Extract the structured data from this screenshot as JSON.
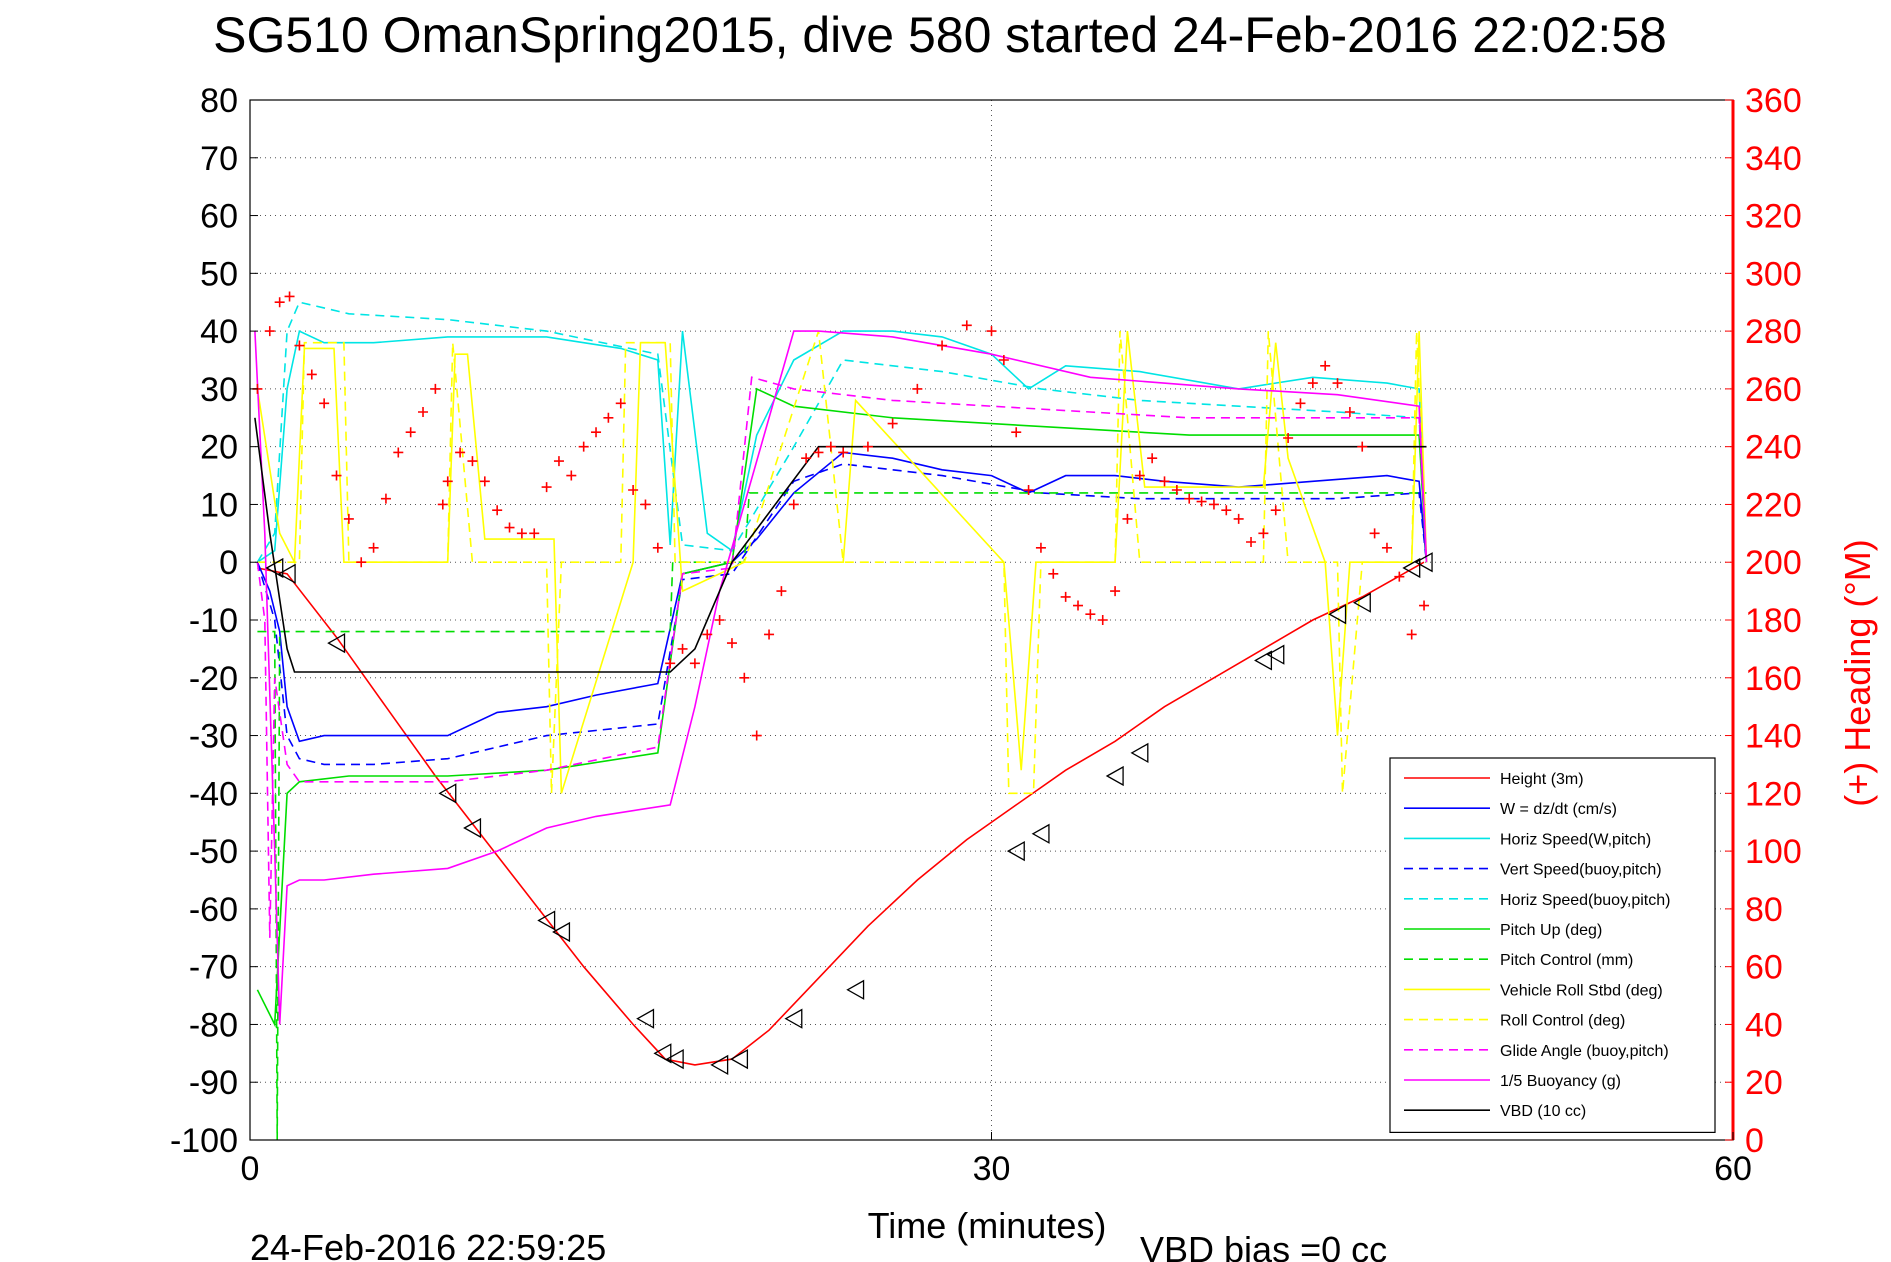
{
  "figure": {
    "title": "SG510 OmanSpring2015, dive 580 started 24-Feb-2016 22:02:58",
    "footer_timestamp": "24-Feb-2016 22:59:25",
    "footer_vbd_bias": "VBD bias =0 cc"
  },
  "chart_data": {
    "type": "line",
    "title": "SG510 OmanSpring2015, dive 580 started 24-Feb-2016 22:02:58",
    "xlabel": "Time (minutes)",
    "ylabel": "",
    "y2label": "(+) Heading (°M)",
    "xlim": [
      0,
      60
    ],
    "ylim": [
      -100,
      80
    ],
    "y2lim": [
      0,
      360
    ],
    "xticks": [
      0,
      30,
      60
    ],
    "yticks": [
      -100,
      -90,
      -80,
      -70,
      -60,
      -50,
      -40,
      -30,
      -20,
      -10,
      0,
      10,
      20,
      30,
      40,
      50,
      60,
      70,
      80
    ],
    "y2ticks": [
      0,
      20,
      40,
      60,
      80,
      100,
      120,
      140,
      160,
      180,
      200,
      220,
      240,
      260,
      280,
      300,
      320,
      340,
      360
    ],
    "grid": "dotted",
    "legend_position": "bottom-right",
    "series": [
      {
        "name": "Height (3m)",
        "color": "#ff0000",
        "dash": "solid",
        "x": [
          0.3,
          1.5,
          3.5,
          5.5,
          7.5,
          9.5,
          11.5,
          13.5,
          15.5,
          16.8,
          18.0,
          19.5,
          21.0,
          23.0,
          25.0,
          27.0,
          29.0,
          31.0,
          33.0,
          35.0,
          37.0,
          39.0,
          41.0,
          43.0,
          45.0,
          47.5
        ],
        "values": [
          -1,
          -2,
          -13,
          -25,
          -37,
          -48,
          -59,
          -70,
          -80,
          -86,
          -87,
          -86,
          -81,
          -72,
          -63,
          -55,
          -48,
          -42,
          -36,
          -31,
          -25,
          -20,
          -15,
          -10,
          -6,
          0
        ]
      },
      {
        "name": "W = dz/dt (cm/s)",
        "color": "#0000ff",
        "dash": "solid",
        "x": [
          0.3,
          0.8,
          1.2,
          1.5,
          2.0,
          3.0,
          5.0,
          8.0,
          10.0,
          12.0,
          14.0,
          16.5,
          17.5,
          18.5,
          19.5,
          20.5,
          22.0,
          24.0,
          26.0,
          28.0,
          30.0,
          31.5,
          33.0,
          35.0,
          37.0,
          40.0,
          43.0,
          46.0,
          47.3,
          47.6
        ],
        "values": [
          0,
          -5,
          -12,
          -25,
          -31,
          -30,
          -30,
          -30,
          -26,
          -25,
          -23,
          -21,
          -2,
          -1,
          0,
          4,
          12,
          19,
          18,
          16,
          15,
          12,
          15,
          15,
          14,
          13,
          14,
          15,
          14,
          0
        ]
      },
      {
        "name": "Horiz Speed(W,pitch)",
        "color": "#00e5e5",
        "dash": "solid",
        "x": [
          0.3,
          1.0,
          1.5,
          2.0,
          3.0,
          5.0,
          8.0,
          12.0,
          15.0,
          16.5,
          17.0,
          17.5,
          18.5,
          19.5,
          20.5,
          22.0,
          24.0,
          26.0,
          28.0,
          30.0,
          31.5,
          33.0,
          36.0,
          40.0,
          43.0,
          46.0,
          47.3,
          47.6
        ],
        "values": [
          0,
          2,
          30,
          40,
          38,
          38,
          39,
          39,
          37,
          35,
          3,
          40,
          5,
          2,
          22,
          35,
          40,
          40,
          39,
          36,
          30,
          34,
          33,
          30,
          32,
          31,
          30,
          0
        ]
      },
      {
        "name": "Vert Speed(buoy,pitch)",
        "color": "#0000ff",
        "dash": "dashed",
        "x": [
          0.3,
          1.0,
          1.5,
          2.0,
          3.0,
          5.0,
          8.0,
          12.0,
          16.5,
          17.5,
          19.5,
          22.0,
          24.0,
          28.0,
          32.0,
          36.0,
          40.0,
          44.0,
          47.3,
          47.6
        ],
        "values": [
          0,
          -10,
          -30,
          -34,
          -35,
          -35,
          -34,
          -30,
          -28,
          -3,
          -2,
          14,
          17,
          15,
          12,
          11,
          11,
          11,
          12,
          0
        ]
      },
      {
        "name": "Horiz Speed(buoy,pitch)",
        "color": "#00e5e5",
        "dash": "dashed",
        "x": [
          0.3,
          1.0,
          1.5,
          2.0,
          4.0,
          8.0,
          12.0,
          16.5,
          17.5,
          19.5,
          22.0,
          24.0,
          28.0,
          32.0,
          36.0,
          40.0,
          44.0,
          47.3,
          47.6
        ],
        "values": [
          0,
          5,
          40,
          45,
          43,
          42,
          40,
          36,
          3,
          2,
          20,
          35,
          33,
          30,
          28,
          27,
          26,
          25,
          0
        ]
      },
      {
        "name": "Pitch Up (deg)",
        "color": "#00dd00",
        "dash": "solid",
        "x": [
          0.3,
          1.0,
          1.5,
          2.0,
          4.0,
          8.0,
          12.0,
          16.5,
          17.5,
          19.5,
          20.5,
          22.0,
          26.0,
          30.0,
          34.0,
          38.0,
          42.0,
          45.0,
          47.3,
          47.6
        ],
        "values": [
          -74,
          -80,
          -40,
          -38,
          -37,
          -37,
          -36,
          -33,
          -2,
          0,
          30,
          27,
          25,
          24,
          23,
          22,
          22,
          22,
          22,
          0
        ]
      },
      {
        "name": "Pitch Control (mm)",
        "color": "#00dd00",
        "dash": "dashed",
        "x": [
          0.3,
          1.0,
          1.1,
          1.2,
          1.6,
          2.0,
          8.0,
          12.0,
          17.0,
          17.1,
          19.5,
          20.0,
          20.2,
          30.0,
          40.0,
          47.6
        ],
        "values": [
          -12,
          -12,
          -100,
          -12,
          -12,
          -12,
          -12,
          -12,
          -12,
          0,
          0,
          0,
          12,
          12,
          12,
          12
        ]
      },
      {
        "name": "Vehicle Roll Stbd (deg)",
        "color": "#ffff00",
        "dash": "solid",
        "x": [
          0.3,
          1.2,
          1.8,
          2.2,
          3.4,
          3.8,
          8.0,
          8.3,
          8.8,
          9.5,
          11.5,
          12.3,
          12.6,
          15.5,
          15.8,
          16.8,
          17.5,
          20.0,
          24.0,
          24.5,
          30.5,
          31.2,
          31.8,
          35.0,
          35.5,
          36.2,
          41.0,
          41.5,
          42.0,
          43.5,
          44.0,
          44.5,
          47.0,
          47.3,
          47.6
        ],
        "values": [
          30,
          5,
          0,
          37,
          37,
          0,
          0,
          36,
          36,
          4,
          4,
          4,
          -40,
          0,
          38,
          38,
          -5,
          0,
          0,
          28,
          0,
          -36,
          0,
          0,
          40,
          13,
          13,
          38,
          18,
          0,
          -30,
          0,
          0,
          40,
          0
        ]
      },
      {
        "name": "Roll Control (deg)",
        "color": "#ffff00",
        "dash": "dashed",
        "x": [
          0.3,
          2.0,
          2.2,
          3.8,
          4.0,
          8.0,
          8.2,
          9.0,
          12.0,
          12.2,
          12.6,
          15.0,
          15.2,
          17.0,
          17.2,
          20.0,
          23.0,
          24.0,
          30.5,
          30.7,
          31.7,
          32.0,
          35.0,
          35.2,
          36.0,
          41.0,
          41.2,
          42.0,
          44.0,
          44.2,
          45.0,
          47.0,
          47.2,
          47.6
        ],
        "values": [
          0,
          0,
          38,
          38,
          0,
          0,
          38,
          0,
          0,
          -40,
          0,
          0,
          38,
          38,
          0,
          0,
          40,
          0,
          0,
          -40,
          -40,
          0,
          0,
          40,
          0,
          0,
          40,
          0,
          0,
          -40,
          0,
          0,
          40,
          0
        ]
      },
      {
        "name": "Glide Angle (buoy,pitch)",
        "color": "#ff00ff",
        "dash": "dashed",
        "x": [
          0.3,
          0.6,
          0.8,
          1.0,
          1.5,
          2.0,
          4.0,
          8.0,
          12.0,
          16.5,
          17.5,
          19.5,
          20.3,
          22.0,
          26.0,
          30.0,
          34.0,
          38.0,
          42.0,
          47.3,
          47.6
        ],
        "values": [
          0,
          -10,
          -65,
          -20,
          -35,
          -38,
          -38,
          -38,
          -36,
          -32,
          -2,
          -1,
          32,
          30,
          28,
          27,
          26,
          25,
          25,
          25,
          0
        ]
      },
      {
        "name": "1/5 Buoyancy (g)",
        "color": "#ff00ff",
        "dash": "solid",
        "x": [
          0.2,
          0.6,
          1.0,
          1.2,
          1.5,
          2.0,
          3.0,
          5.0,
          8.0,
          10.0,
          12.0,
          14.0,
          17.0,
          18.0,
          19.0,
          22.0,
          23.0,
          26.0,
          30.0,
          34.0,
          40.0,
          44.0,
          47.3,
          47.6
        ],
        "values": [
          40,
          5,
          -50,
          -80,
          -56,
          -55,
          -55,
          -54,
          -53,
          -50,
          -46,
          -44,
          -42,
          -25,
          -5,
          40,
          40,
          39,
          36,
          32,
          30,
          29,
          27,
          0
        ]
      },
      {
        "name": "VBD (10 cc)",
        "color": "#000000",
        "dash": "solid",
        "x": [
          0.2,
          0.8,
          1.5,
          1.8,
          5.0,
          10.0,
          15.0,
          17.0,
          18.0,
          19.5,
          23.0,
          30.0,
          40.0,
          47.6
        ],
        "values": [
          25,
          5,
          -15,
          -19,
          -19,
          -19,
          -19,
          -19,
          -15,
          0,
          20,
          20,
          20,
          20
        ]
      }
    ],
    "heading_series": {
      "name": "(+) Heading (°M)",
      "color": "#ff0000",
      "marker": "+",
      "axis": "right",
      "x": [
        0.3,
        0.8,
        1.2,
        1.6,
        2.0,
        2.5,
        3.0,
        3.5,
        4.0,
        4.5,
        5.0,
        5.5,
        6.0,
        6.5,
        7.0,
        7.5,
        7.8,
        8.0,
        8.5,
        9.0,
        9.5,
        10.0,
        10.5,
        11.0,
        11.5,
        12.0,
        12.5,
        13.0,
        13.5,
        14.0,
        14.5,
        15.0,
        15.5,
        16.0,
        16.5,
        17.0,
        17.5,
        18.0,
        18.5,
        19.0,
        19.5,
        20.0,
        20.5,
        21.0,
        21.5,
        22.0,
        22.5,
        23.0,
        23.5,
        24.0,
        25.0,
        26.0,
        27.0,
        28.0,
        29.0,
        30.0,
        30.5,
        31.0,
        31.5,
        32.0,
        32.5,
        33.0,
        33.5,
        34.0,
        34.5,
        35.0,
        35.5,
        36.0,
        36.5,
        37.0,
        37.5,
        38.0,
        38.5,
        39.0,
        39.5,
        40.0,
        40.5,
        41.0,
        41.5,
        42.0,
        42.5,
        43.0,
        43.5,
        44.0,
        44.5,
        45.0,
        45.5,
        46.0,
        46.5,
        47.0,
        47.5
      ],
      "values": [
        260,
        280,
        290,
        292,
        275,
        265,
        255,
        230,
        215,
        200,
        205,
        222,
        238,
        245,
        252,
        260,
        220,
        228,
        238,
        235,
        228,
        218,
        212,
        210,
        210,
        226,
        235,
        230,
        240,
        245,
        250,
        255,
        225,
        220,
        205,
        165,
        170,
        165,
        175,
        180,
        172,
        160,
        140,
        175,
        190,
        220,
        236,
        238,
        240,
        238,
        240,
        248,
        260,
        275,
        282,
        280,
        270,
        245,
        225,
        205,
        196,
        188,
        185,
        182,
        180,
        190,
        215,
        230,
        236,
        228,
        225,
        222,
        221,
        220,
        218,
        215,
        207,
        210,
        218,
        243,
        255,
        262,
        268,
        262,
        252,
        240,
        210,
        205,
        195,
        175,
        185
      ]
    },
    "markers_on_height": {
      "marker": "triangle-left",
      "color": "#000000",
      "x": [
        1.0,
        1.5,
        3.5,
        8.0,
        9.0,
        12.0,
        12.6,
        16.0,
        16.7,
        17.2,
        19.0,
        19.8,
        22.0,
        24.5,
        31.0,
        32.0,
        35.0,
        36.0,
        41.0,
        41.5,
        44.0,
        45.0,
        47.0,
        47.5
      ],
      "values": [
        -1,
        -2,
        -14,
        -40,
        -46,
        -62,
        -64,
        -79,
        -85,
        -86,
        -87,
        -86,
        -79,
        -74,
        -50,
        -47,
        -37,
        -33,
        -17,
        -16,
        -9,
        -7,
        -1,
        0
      ]
    }
  }
}
